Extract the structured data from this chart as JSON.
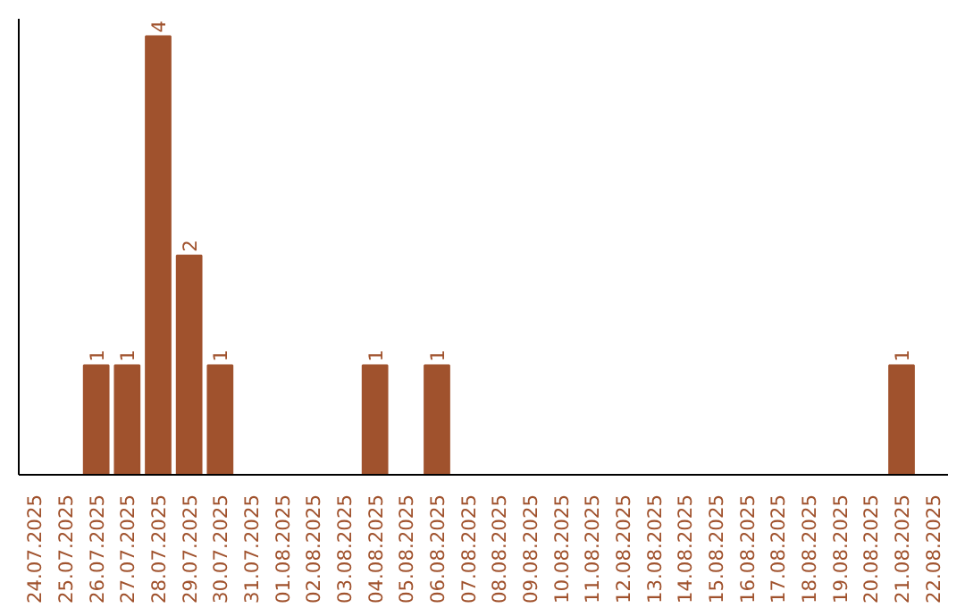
{
  "chart_data": {
    "type": "bar",
    "categories": [
      "24.07.2025",
      "25.07.2025",
      "26.07.2025",
      "27.07.2025",
      "28.07.2025",
      "29.07.2025",
      "30.07.2025",
      "31.07.2025",
      "01.08.2025",
      "02.08.2025",
      "03.08.2025",
      "04.08.2025",
      "05.08.2025",
      "06.08.2025",
      "07.08.2025",
      "08.08.2025",
      "09.08.2025",
      "10.08.2025",
      "11.08.2025",
      "12.08.2025",
      "13.08.2025",
      "14.08.2025",
      "15.08.2025",
      "16.08.2025",
      "17.08.2025",
      "18.08.2025",
      "19.08.2025",
      "20.08.2025",
      "21.08.2025",
      "22.08.2025"
    ],
    "values": [
      0,
      0,
      1,
      1,
      4,
      2,
      1,
      0,
      0,
      0,
      0,
      1,
      0,
      1,
      0,
      0,
      0,
      0,
      0,
      0,
      0,
      0,
      0,
      0,
      0,
      0,
      0,
      0,
      1,
      0
    ],
    "value_labels": [
      null,
      null,
      "1",
      "1",
      "4",
      "2",
      "1",
      null,
      null,
      null,
      null,
      "1",
      null,
      "1",
      null,
      null,
      null,
      null,
      null,
      null,
      null,
      null,
      null,
      null,
      null,
      null,
      null,
      null,
      "1",
      null
    ],
    "color": "#a0522d"
  }
}
